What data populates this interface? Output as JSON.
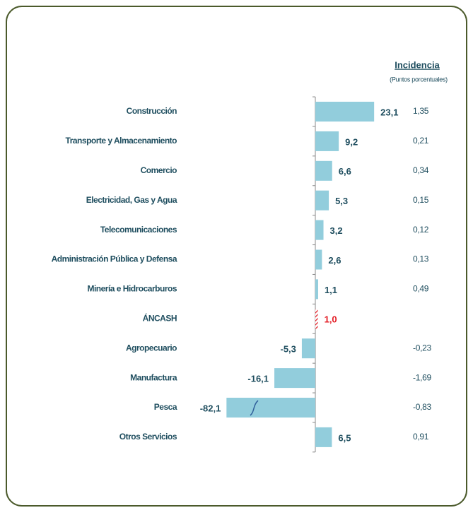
{
  "chart_data": {
    "type": "bar",
    "orientation": "horizontal",
    "color": "#92cddc",
    "highlight_color": "#e31b23",
    "categories": [
      "Construcción",
      "Transporte y Almacenamiento",
      "Comercio",
      "Electricidad, Gas y Agua",
      "Telecomunicaciones",
      "Administración Pública y Defensa",
      "Minería e Hidrocarburos",
      "ÁNCASH",
      "Agropecuario",
      "Manufactura",
      "Pesca",
      "Otros Servicios"
    ],
    "values": [
      23.1,
      9.2,
      6.6,
      5.3,
      3.2,
      2.6,
      1.1,
      1.0,
      -5.3,
      -16.1,
      -82.1,
      6.5
    ],
    "value_labels": [
      "23,1",
      "9,2",
      "6,6",
      "5,3",
      "3,2",
      "2,6",
      "1,1",
      "1,0",
      "-5,3",
      "-16,1",
      "-82,1",
      "6,5"
    ],
    "highlight_index": 7,
    "incidence": {
      "title": "Incidencia",
      "subtitle": "(Puntos porcentuales)",
      "values": [
        1.35,
        0.21,
        0.34,
        0.15,
        0.12,
        0.13,
        0.49,
        null,
        -0.23,
        -1.69,
        -0.83,
        0.91
      ],
      "value_labels": [
        "1,35",
        "0,21",
        "0,34",
        "0,15",
        "0,12",
        "0,13",
        "0,49",
        null,
        "-0,23",
        "-1,69",
        "-0,83",
        "0,91"
      ]
    }
  }
}
